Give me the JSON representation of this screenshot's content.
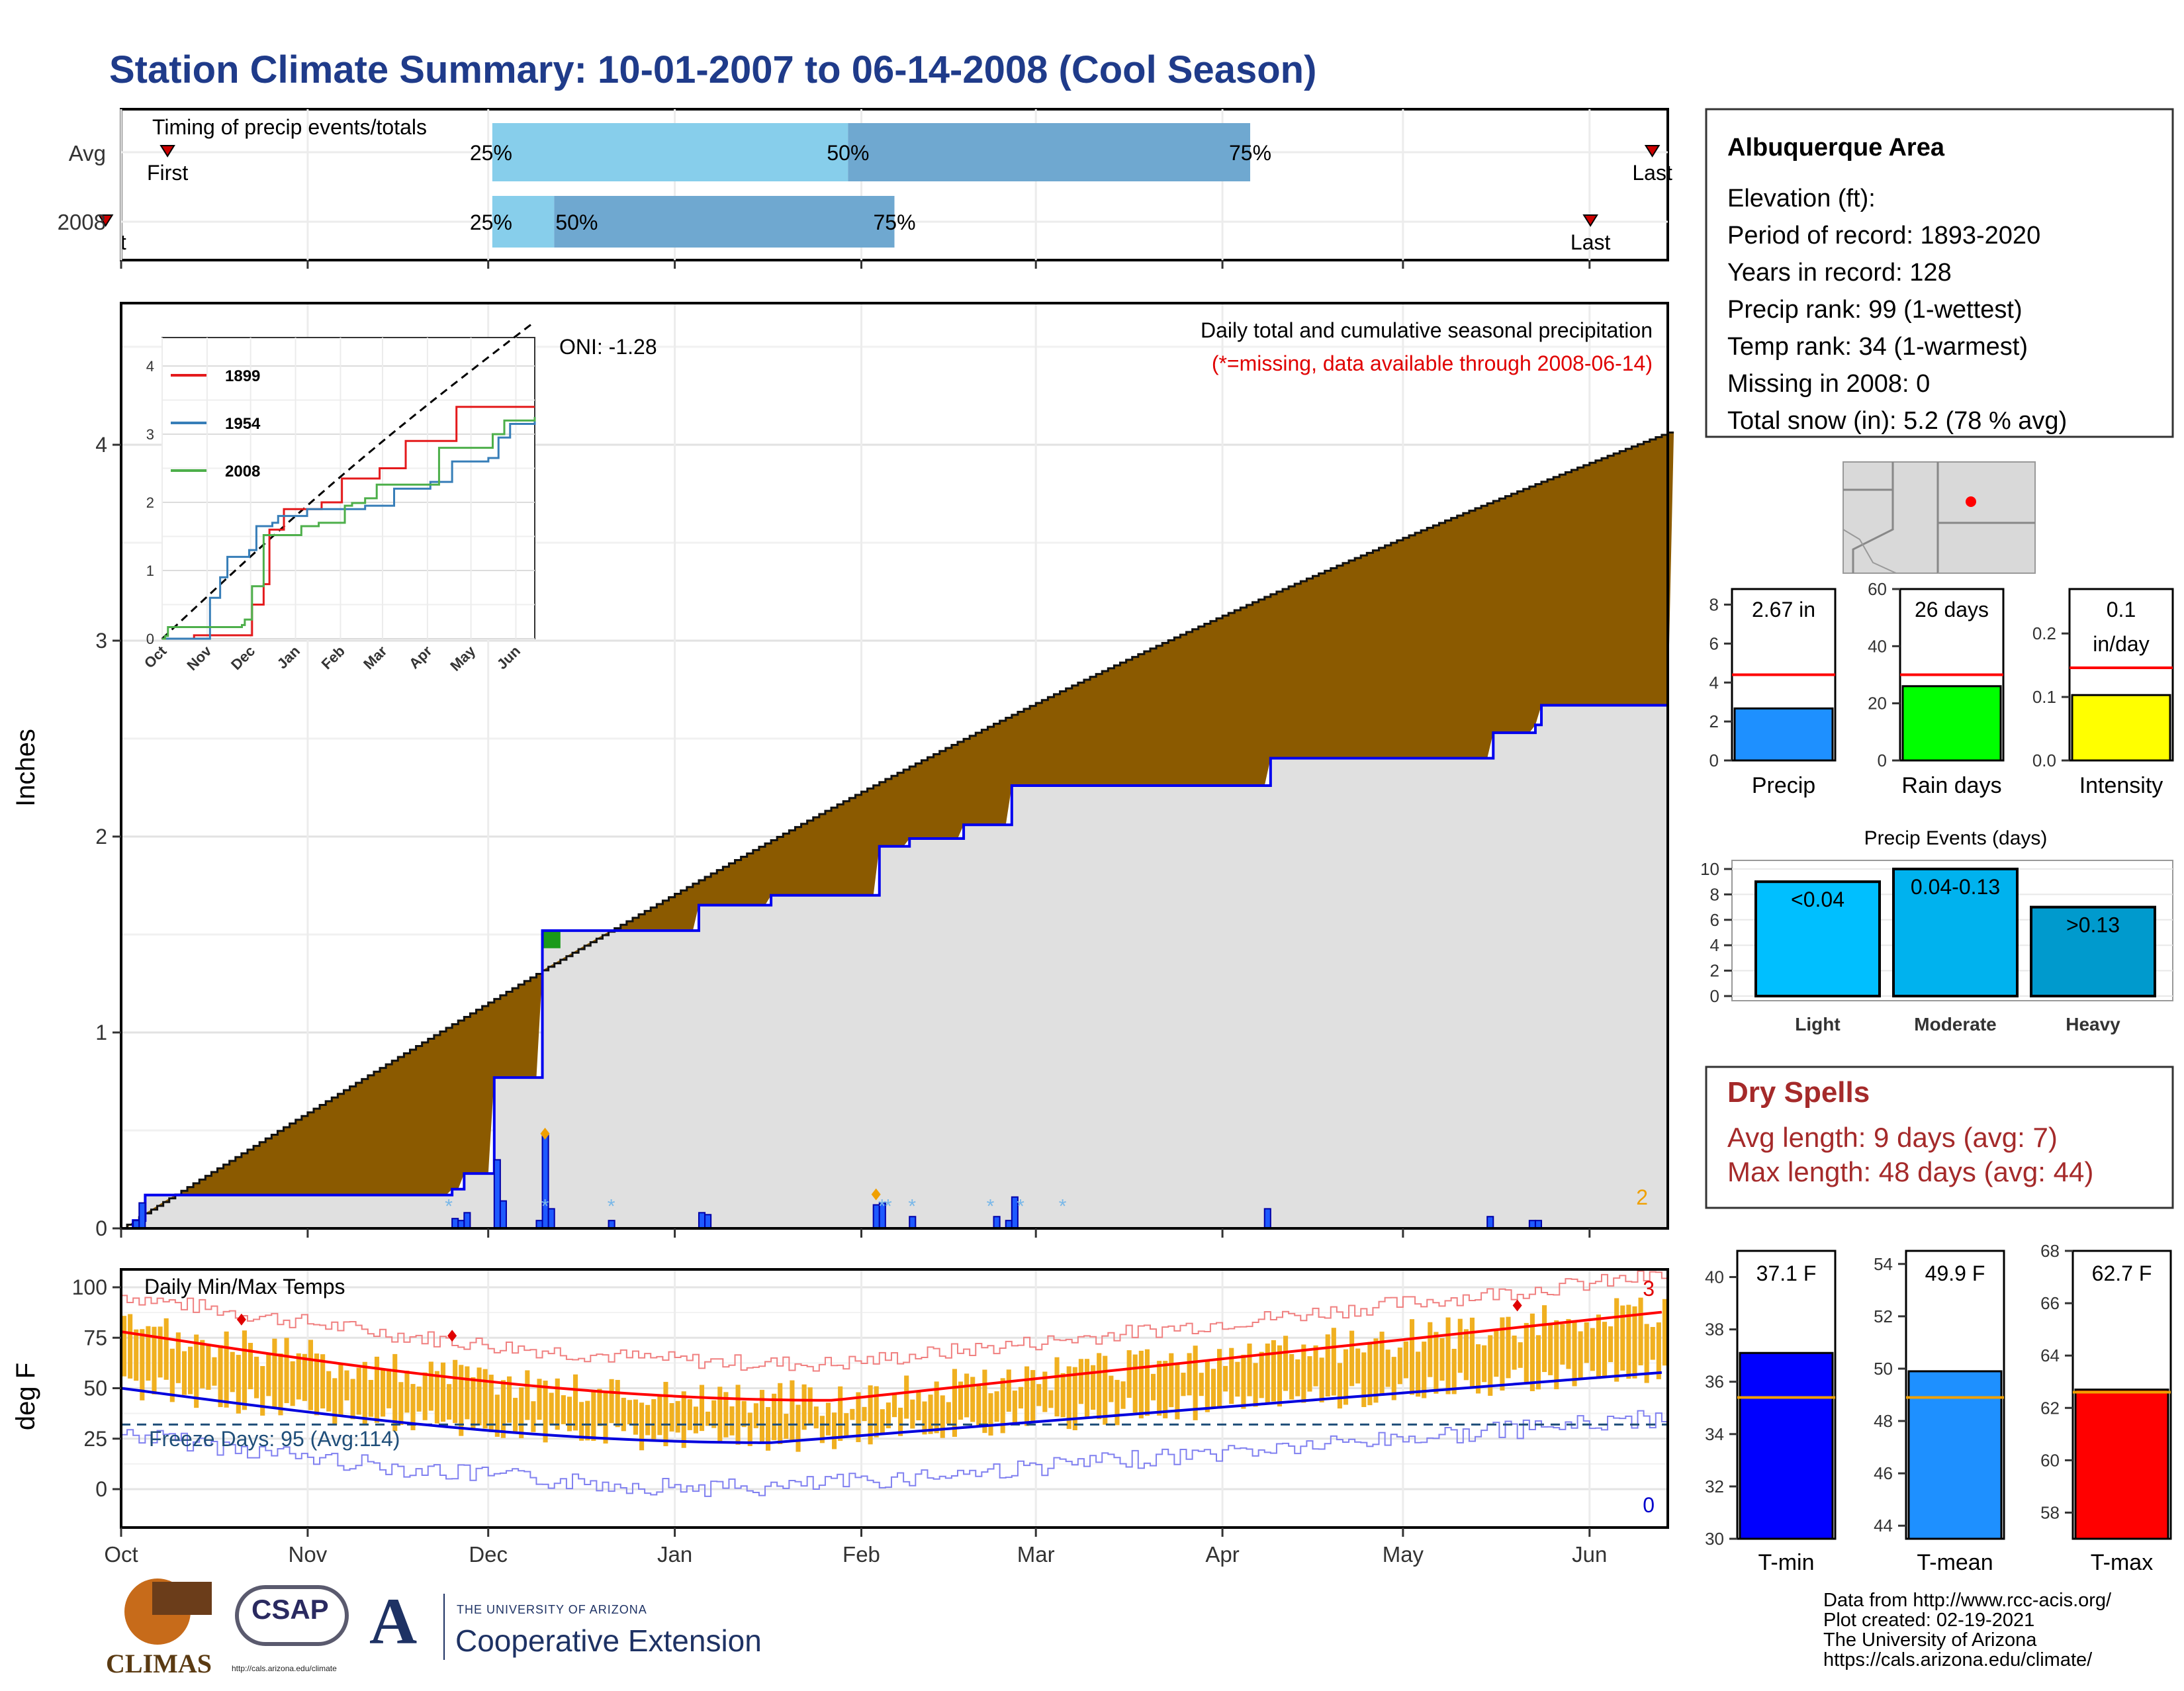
{
  "title": "Station Climate Summary: 10-01-2007 to 06-14-2008 (Cool Season)",
  "timing": {
    "title": "Timing of precip events/totals",
    "rows": [
      {
        "label": "Avg",
        "first": "First",
        "last": "Last",
        "p25": "25%",
        "p50": "50%",
        "p75": "75%",
        "pos": {
          "first": 0.03,
          "p25": 0.24,
          "p50": 0.47,
          "p75": 0.73,
          "last": 0.99
        }
      },
      {
        "label": "2008",
        "first": "First",
        "last": "Last",
        "p25": "25%",
        "p50": "50%",
        "p75": "75%",
        "pos": {
          "first": -0.01,
          "p25": 0.24,
          "p50": 0.28,
          "p75": 0.5,
          "last": 0.95
        }
      }
    ]
  },
  "precip_panel": {
    "ylabel": "Inches",
    "yticks": [
      "0",
      "1",
      "2",
      "3",
      "4"
    ],
    "note1": "Daily total and cumulative seasonal precipitation",
    "note2": "(*=missing, data available through 2008-06-14)",
    "oni": "ONI: -1.28",
    "corner_count": "2"
  },
  "inset": {
    "yticks": [
      "0",
      "1",
      "2",
      "3",
      "4"
    ],
    "xticks": [
      "Oct",
      "Nov",
      "Dec",
      "Jan",
      "Feb",
      "Mar",
      "Apr",
      "May",
      "Jun"
    ],
    "legend": [
      {
        "name": "1899",
        "color": "#e41a1c"
      },
      {
        "name": "1954",
        "color": "#377eb8"
      },
      {
        "name": "2008",
        "color": "#4daf4a"
      }
    ]
  },
  "temp_panel": {
    "title": "Daily Min/Max Temps",
    "ylabel": "deg F",
    "yticks": [
      "0",
      "25",
      "50",
      "75",
      "100"
    ],
    "freeze": "Freeze Days: 95 (Avg:114)",
    "count_high": "3",
    "count_low": "0"
  },
  "months": [
    "Oct",
    "Nov",
    "Dec",
    "Jan",
    "Feb",
    "Mar",
    "Apr",
    "May",
    "Jun"
  ],
  "station": {
    "name": "Albuquerque Area",
    "lines": [
      "Elevation (ft):",
      "Period of record: 1893-2020",
      "Years in record: 128",
      "Precip rank: 99 (1-wettest)",
      "Temp rank: 34 (1-warmest)",
      "Missing in 2008: 0",
      "Total snow (in): 5.2 (78 % avg)"
    ]
  },
  "mini_bars": [
    {
      "label": "Precip",
      "value_text": "2.67 in",
      "yticks": [
        "0",
        "2",
        "4",
        "6",
        "8"
      ],
      "ymax": 8.8,
      "value": 2.67,
      "avg": 4.4,
      "color": "#1e90ff"
    },
    {
      "label": "Rain days",
      "value_text": "26 days",
      "yticks": [
        "0",
        "20",
        "40",
        "60"
      ],
      "ymax": 60,
      "value": 26,
      "avg": 30,
      "color": "#00ff00"
    },
    {
      "label": "Intensity",
      "value_text": "0.1\nin/day",
      "yticks": [
        "0.0",
        "0.1",
        "0.2"
      ],
      "ymax": 0.27,
      "value": 0.103,
      "avg": 0.146,
      "color": "#ffff00"
    }
  ],
  "events": {
    "title": "Precip Events (days)",
    "yticks": [
      "0",
      "2",
      "4",
      "6",
      "8",
      "10"
    ],
    "bars": [
      {
        "cat": "Light",
        "label": "<0.04",
        "value": 9,
        "color": "#00bfff"
      },
      {
        "cat": "Moderate",
        "label": "0.04-0.13",
        "value": 10,
        "color": "#00b2ee"
      },
      {
        "cat": "Heavy",
        "label": ">0.13",
        "value": 7,
        "color": "#009acd"
      }
    ]
  },
  "dry": {
    "title": "Dry Spells",
    "avg": "Avg length: 9 days (avg: 7)",
    "max": "Max length: 48 days (avg: 44)"
  },
  "temp_bars": [
    {
      "label": "T-min",
      "value_text": "37.1 F",
      "yticks": [
        "30",
        "32",
        "34",
        "36",
        "38",
        "40"
      ],
      "ymin": 30,
      "ymax": 41,
      "value": 37.1,
      "avg": 35.4,
      "color": "#0000ff"
    },
    {
      "label": "T-mean",
      "value_text": "49.9 F",
      "yticks": [
        "44",
        "46",
        "48",
        "50",
        "52",
        "54"
      ],
      "ymin": 43.5,
      "ymax": 54.5,
      "value": 49.9,
      "avg": 48.9,
      "color": "#1e90ff"
    },
    {
      "label": "T-max",
      "value_text": "62.7 F",
      "yticks": [
        "58",
        "60",
        "62",
        "64",
        "66",
        "68"
      ],
      "ymin": 57,
      "ymax": 68,
      "value": 62.7,
      "avg": 62.6,
      "color": "#ff0000"
    }
  ],
  "footer": [
    "Data from http://www.rcc-acis.org/",
    "Plot created: 02-19-2021",
    "The University of Arizona",
    "https://cals.arizona.edu/climate/"
  ],
  "logos": {
    "climas": "CLIMAS",
    "csap": "CSAP",
    "csap_url": "http://cals.arizona.edu/climate",
    "ua_small": "THE UNIVERSITY OF ARIZONA",
    "ua_big": "Cooperative Extension"
  }
}
